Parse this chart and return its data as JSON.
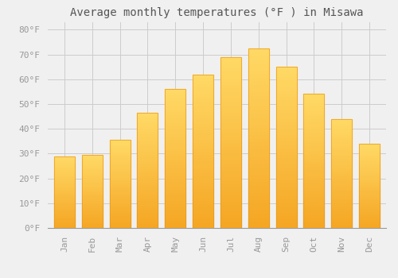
{
  "title": "Average monthly temperatures (°F ) in Misawa",
  "months": [
    "Jan",
    "Feb",
    "Mar",
    "Apr",
    "May",
    "Jun",
    "Jul",
    "Aug",
    "Sep",
    "Oct",
    "Nov",
    "Dec"
  ],
  "values": [
    29,
    29.5,
    35.5,
    46.5,
    56,
    62,
    69,
    72.5,
    65,
    54,
    44,
    34
  ],
  "bar_color_bottom": "#F5A623",
  "bar_color_top": "#FFD966",
  "bar_edge_color": "#E89820",
  "background_color": "#f0f0f0",
  "grid_color": "#cccccc",
  "ylim": [
    0,
    83
  ],
  "yticks": [
    0,
    10,
    20,
    30,
    40,
    50,
    60,
    70,
    80
  ],
  "ytick_labels": [
    "0°F",
    "10°F",
    "20°F",
    "30°F",
    "40°F",
    "50°F",
    "60°F",
    "70°F",
    "80°F"
  ],
  "title_fontsize": 10,
  "tick_fontsize": 8,
  "tick_color": "#999999",
  "title_color": "#555555",
  "font_family": "monospace",
  "bar_width": 0.75
}
